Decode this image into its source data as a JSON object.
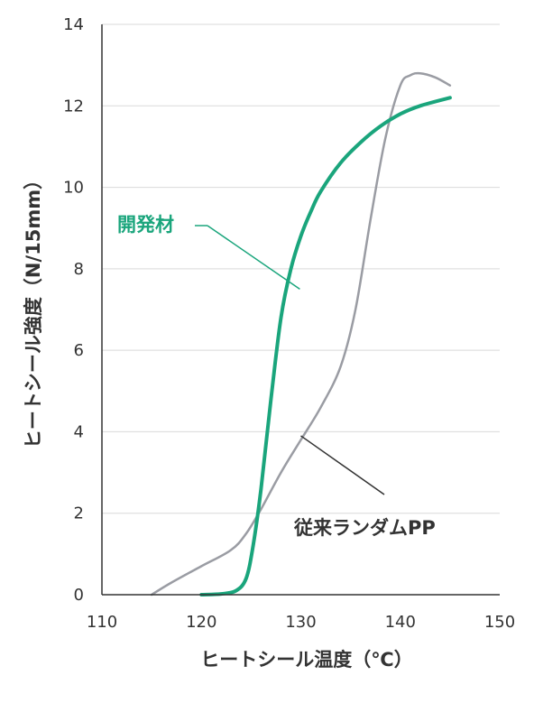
{
  "chart_data": {
    "type": "line",
    "xlabel": "ヒートシール温度（℃）",
    "ylabel": "ヒートシール強度（N/15mm）",
    "xlim": [
      110,
      150
    ],
    "ylim": [
      0,
      14
    ],
    "xticks": [
      "110",
      "120",
      "130",
      "140",
      "150"
    ],
    "yticks": [
      "0",
      "2",
      "4",
      "6",
      "8",
      "10",
      "12",
      "14"
    ],
    "grid": "horizontal",
    "series": [
      {
        "name": "開発材",
        "color": "#1aa57c",
        "points": [
          [
            120,
            0
          ],
          [
            122,
            0.02
          ],
          [
            123.5,
            0.1
          ],
          [
            124.5,
            0.4
          ],
          [
            125.2,
            1.2
          ],
          [
            126,
            2.6
          ],
          [
            127,
            4.8
          ],
          [
            128,
            6.8
          ],
          [
            129,
            8.0
          ],
          [
            130,
            8.8
          ],
          [
            131,
            9.4
          ],
          [
            132,
            9.9
          ],
          [
            134,
            10.6
          ],
          [
            136,
            11.1
          ],
          [
            138,
            11.5
          ],
          [
            140,
            11.8
          ],
          [
            142,
            12.0
          ],
          [
            145,
            12.2
          ]
        ]
      },
      {
        "name": "従来ランダムPP",
        "color": "#9a9ca3",
        "points": [
          [
            115,
            0
          ],
          [
            117,
            0.3
          ],
          [
            120,
            0.7
          ],
          [
            123,
            1.1
          ],
          [
            124.5,
            1.5
          ],
          [
            126,
            2.1
          ],
          [
            128,
            3.0
          ],
          [
            130,
            3.8
          ],
          [
            132,
            4.6
          ],
          [
            134,
            5.6
          ],
          [
            135.5,
            7.0
          ],
          [
            137,
            9.2
          ],
          [
            138.5,
            11.2
          ],
          [
            140,
            12.5
          ],
          [
            141,
            12.75
          ],
          [
            142,
            12.8
          ],
          [
            143.5,
            12.7
          ],
          [
            145,
            12.5
          ]
        ]
      }
    ],
    "annotations": [
      {
        "text": "開発材",
        "series": 0
      },
      {
        "text": "従来ランダムPP",
        "series": 1
      }
    ]
  },
  "colors": {
    "axis": "#333333",
    "grid": "#d9d9d9",
    "new_material": "#1aa57c",
    "conventional": "#9a9ca3",
    "leader_old": "#333333"
  }
}
